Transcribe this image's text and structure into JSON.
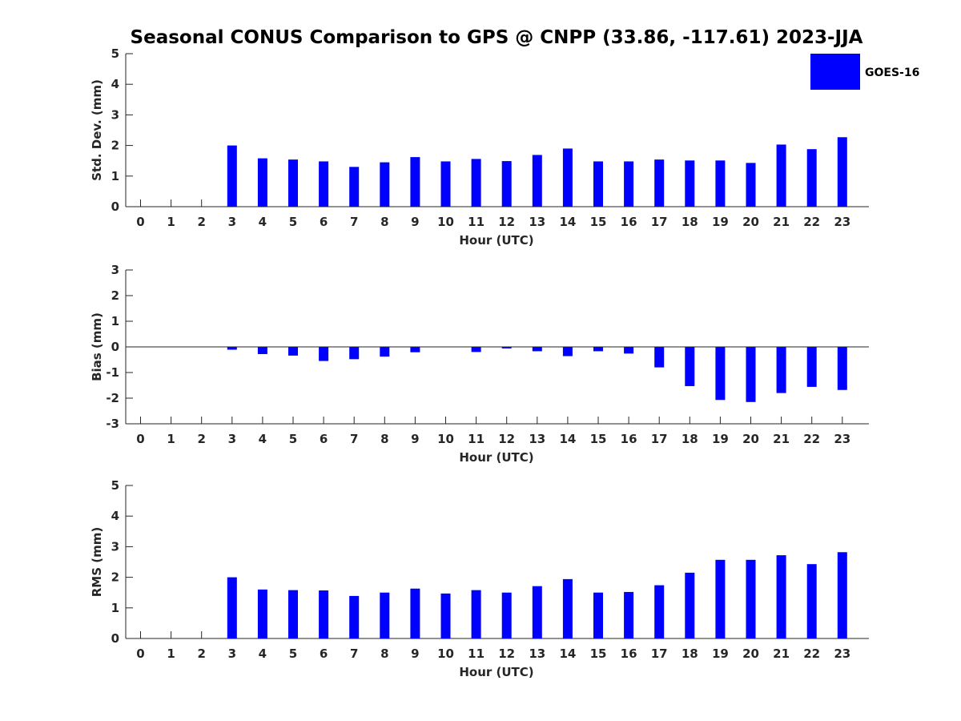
{
  "chart_data": [
    {
      "type": "bar",
      "title": "Seasonal CONUS Comparison to GPS @ CNPP (33.86, -117.61) 2023-JJA",
      "xlabel": "Hour (UTC)",
      "ylabel": "Std. Dev. (mm)",
      "ylim": [
        0,
        5
      ],
      "yticks": [
        0,
        1,
        2,
        3,
        4,
        5
      ],
      "categories": [
        "0",
        "1",
        "2",
        "3",
        "4",
        "5",
        "6",
        "7",
        "8",
        "9",
        "10",
        "11",
        "12",
        "13",
        "14",
        "15",
        "16",
        "17",
        "18",
        "19",
        "20",
        "21",
        "22",
        "23"
      ],
      "series": [
        {
          "name": "GOES-16",
          "color": "#0000ff",
          "values": [
            null,
            null,
            null,
            2.0,
            1.58,
            1.54,
            1.48,
            1.3,
            1.45,
            1.62,
            1.48,
            1.56,
            1.49,
            1.69,
            1.9,
            1.48,
            1.48,
            1.54,
            1.51,
            1.51,
            1.43,
            2.03,
            1.88,
            2.27
          ]
        }
      ],
      "legend": "top-right",
      "grid": false
    },
    {
      "type": "bar",
      "xlabel": "Hour (UTC)",
      "ylabel": "Bias (mm)",
      "ylim": [
        -3,
        3
      ],
      "yticks": [
        -3,
        -2,
        -1,
        0,
        1,
        2,
        3
      ],
      "categories": [
        "0",
        "1",
        "2",
        "3",
        "4",
        "5",
        "6",
        "7",
        "8",
        "9",
        "10",
        "11",
        "12",
        "13",
        "14",
        "15",
        "16",
        "17",
        "18",
        "19",
        "20",
        "21",
        "22",
        "23"
      ],
      "series": [
        {
          "name": "GOES-16",
          "color": "#0000ff",
          "values": [
            null,
            null,
            null,
            -0.11,
            -0.28,
            -0.34,
            -0.55,
            -0.48,
            -0.38,
            -0.21,
            0.0,
            -0.2,
            -0.06,
            -0.17,
            -0.36,
            -0.17,
            -0.26,
            -0.8,
            -1.53,
            -2.07,
            -2.15,
            -1.8,
            -1.56,
            -1.68
          ]
        }
      ],
      "grid": false
    },
    {
      "type": "bar",
      "xlabel": "Hour (UTC)",
      "ylabel": "RMS (mm)",
      "ylim": [
        0,
        5
      ],
      "yticks": [
        0,
        1,
        2,
        3,
        4,
        5
      ],
      "categories": [
        "0",
        "1",
        "2",
        "3",
        "4",
        "5",
        "6",
        "7",
        "8",
        "9",
        "10",
        "11",
        "12",
        "13",
        "14",
        "15",
        "16",
        "17",
        "18",
        "19",
        "20",
        "21",
        "22",
        "23"
      ],
      "series": [
        {
          "name": "GOES-16",
          "color": "#0000ff",
          "values": [
            null,
            null,
            null,
            2.0,
            1.6,
            1.58,
            1.57,
            1.39,
            1.5,
            1.63,
            1.47,
            1.58,
            1.5,
            1.71,
            1.94,
            1.5,
            1.52,
            1.74,
            2.15,
            2.57,
            2.57,
            2.72,
            2.43,
            2.82
          ]
        }
      ],
      "grid": false
    }
  ],
  "legend": {
    "label": "GOES-16",
    "color": "#0000ff"
  }
}
